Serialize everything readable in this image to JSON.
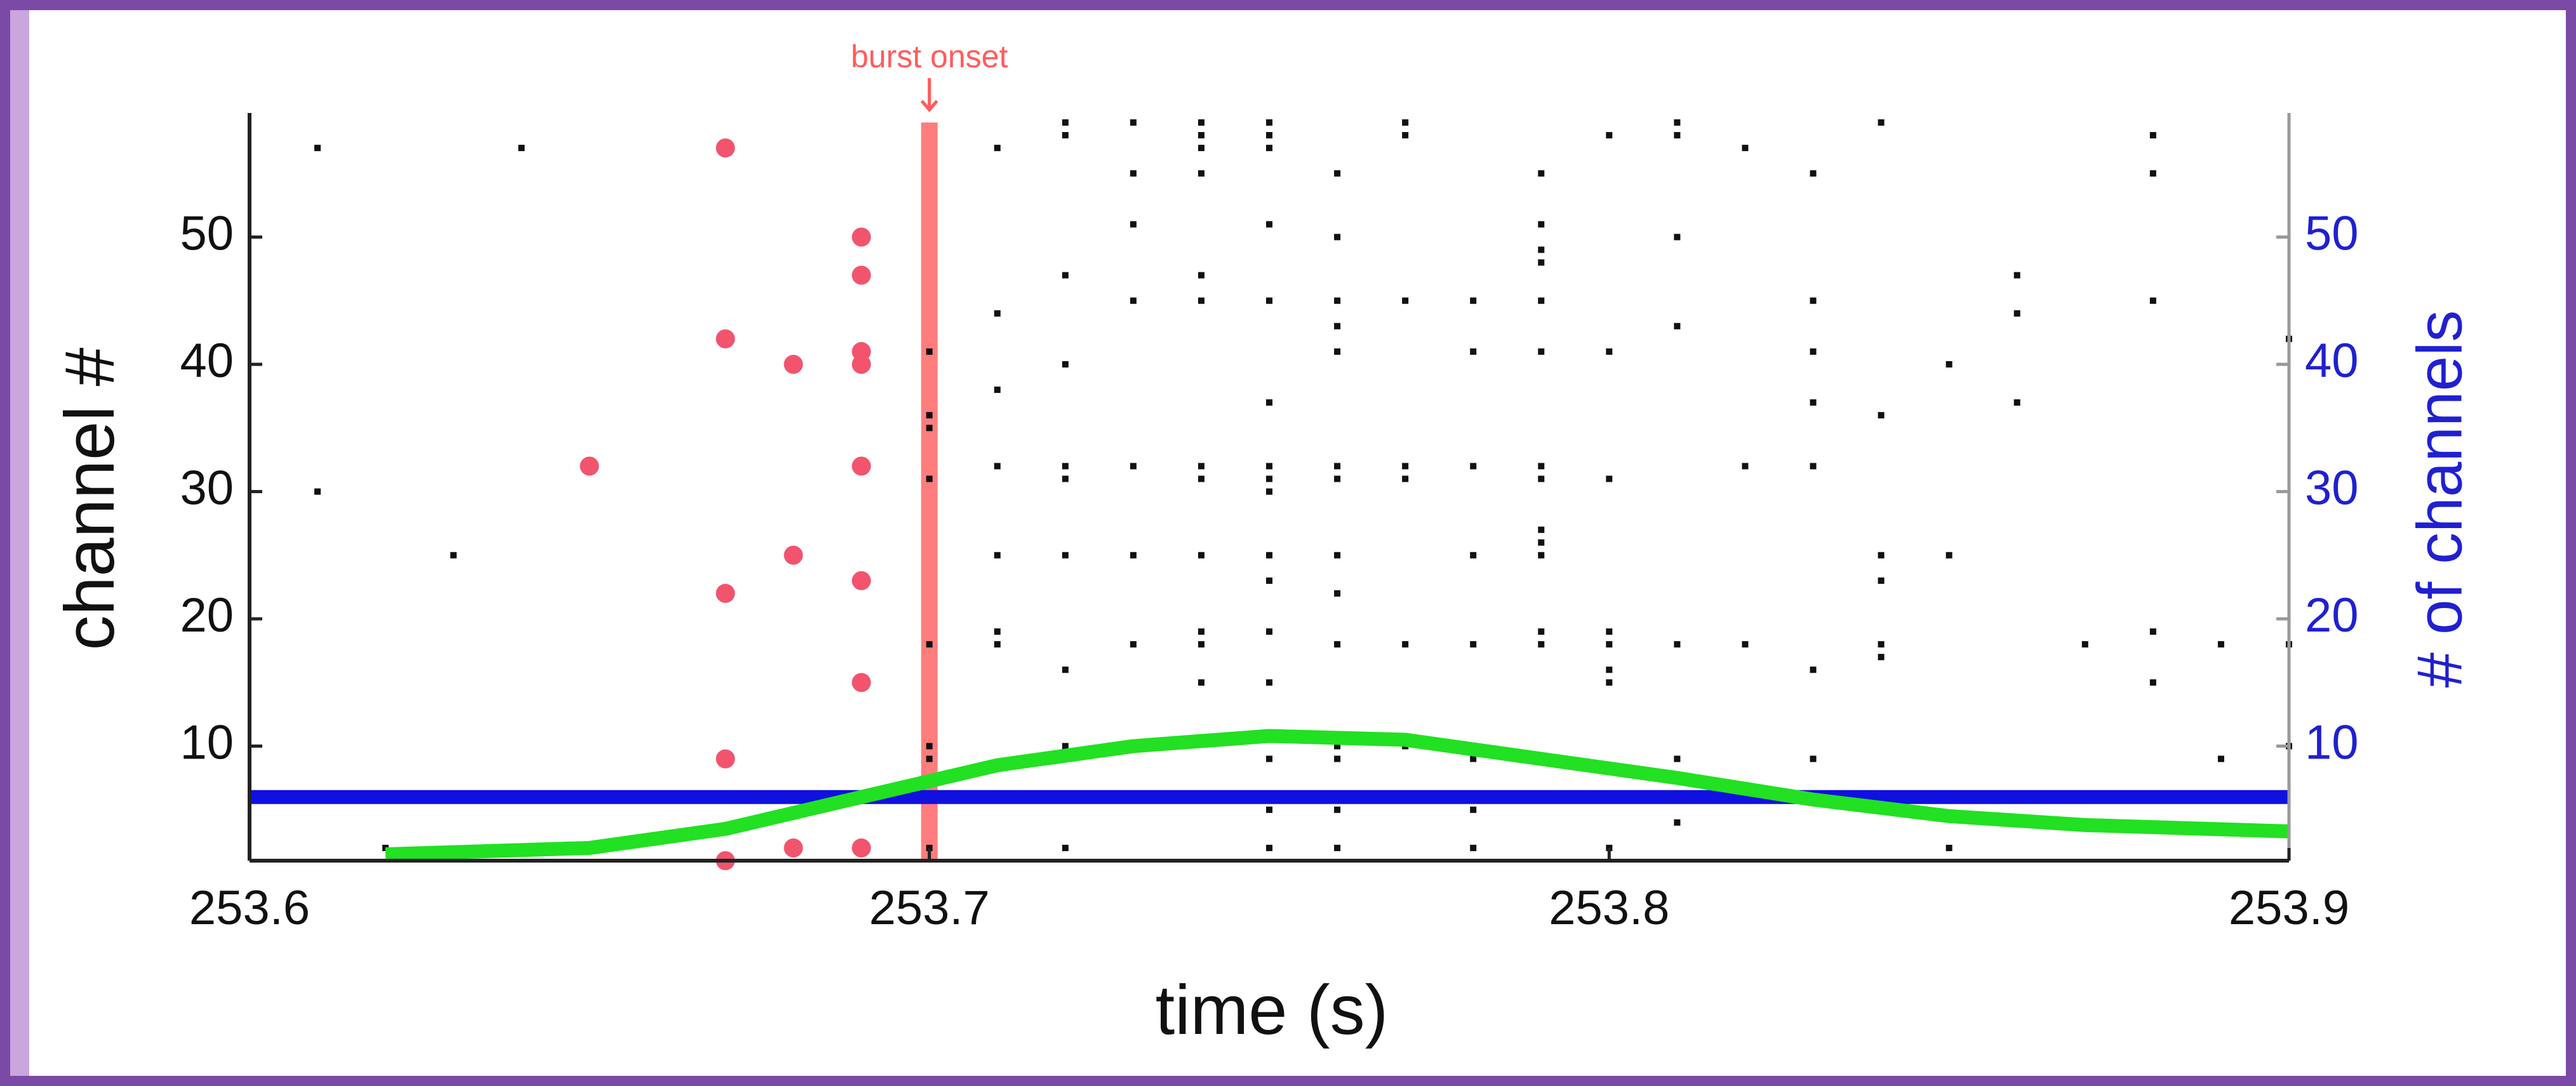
{
  "chart_data": {
    "type": "scatter",
    "xlabel": "time (s)",
    "ylabel": "channel #",
    "y2label": "# of channels",
    "xlim": [
      253.6,
      253.9
    ],
    "xticks": [
      253.6,
      253.7,
      253.8,
      253.9
    ],
    "ylim": [
      1,
      59
    ],
    "yticks": [
      10,
      20,
      30,
      40,
      50
    ],
    "y2lim": [
      1,
      59
    ],
    "y2ticks": [
      10,
      20,
      30,
      40,
      50
    ],
    "annotations": [
      {
        "text": "burst onset",
        "x": 253.7,
        "color": "#ff5c5c"
      }
    ],
    "series": [
      {
        "type": "scatter",
        "marker": "square",
        "color": "#111111",
        "x": [
          253.61,
          253.61,
          253.62,
          253.63,
          253.64,
          253.65,
          253.7,
          253.7,
          253.7,
          253.7,
          253.7,
          253.7,
          253.7,
          253.7,
          253.71,
          253.71,
          253.71,
          253.71,
          253.71,
          253.71,
          253.71,
          253.72,
          253.72,
          253.72,
          253.72,
          253.72,
          253.72,
          253.72,
          253.72,
          253.72,
          253.72,
          253.72,
          253.73,
          253.73,
          253.73,
          253.73,
          253.73,
          253.73,
          253.73,
          253.73,
          253.74,
          253.74,
          253.74,
          253.74,
          253.74,
          253.74,
          253.74,
          253.74,
          253.74,
          253.74,
          253.74,
          253.74,
          253.75,
          253.75,
          253.75,
          253.75,
          253.75,
          253.75,
          253.75,
          253.75,
          253.75,
          253.75,
          253.75,
          253.75,
          253.75,
          253.75,
          253.75,
          253.75,
          253.76,
          253.76,
          253.76,
          253.76,
          253.76,
          253.76,
          253.76,
          253.76,
          253.76,
          253.76,
          253.76,
          253.76,
          253.76,
          253.76,
          253.77,
          253.77,
          253.77,
          253.77,
          253.77,
          253.77,
          253.77,
          253.78,
          253.78,
          253.78,
          253.78,
          253.78,
          253.78,
          253.78,
          253.78,
          253.79,
          253.79,
          253.79,
          253.79,
          253.79,
          253.79,
          253.79,
          253.79,
          253.79,
          253.79,
          253.79,
          253.79,
          253.79,
          253.8,
          253.8,
          253.8,
          253.8,
          253.8,
          253.8,
          253.8,
          253.8,
          253.81,
          253.81,
          253.81,
          253.81,
          253.81,
          253.81,
          253.81,
          253.82,
          253.82,
          253.82,
          253.83,
          253.83,
          253.83,
          253.83,
          253.83,
          253.83,
          253.83,
          253.84,
          253.84,
          253.84,
          253.84,
          253.84,
          253.84,
          253.85,
          253.85,
          253.85,
          253.86,
          253.86,
          253.86,
          253.86,
          253.87,
          253.87,
          253.88,
          253.88,
          253.88,
          253.88,
          253.88,
          253.89,
          253.89,
          253.9,
          253.9,
          253.9
        ],
        "values": [
          57,
          30,
          2,
          25,
          57,
          2,
          41,
          36,
          35,
          31,
          18,
          10,
          9,
          2,
          57,
          44,
          38,
          32,
          25,
          19,
          18,
          59,
          58,
          47,
          40,
          32,
          31,
          25,
          16,
          10,
          6,
          2,
          59,
          55,
          51,
          45,
          32,
          25,
          18,
          10,
          59,
          58,
          57,
          55,
          47,
          45,
          32,
          31,
          25,
          19,
          18,
          15,
          59,
          58,
          57,
          51,
          45,
          37,
          32,
          31,
          30,
          25,
          23,
          19,
          15,
          9,
          5,
          2,
          55,
          50,
          45,
          43,
          41,
          32,
          31,
          25,
          22,
          18,
          10,
          9,
          5,
          2,
          59,
          58,
          45,
          32,
          31,
          18,
          10,
          45,
          41,
          32,
          25,
          18,
          9,
          5,
          2,
          55,
          51,
          49,
          48,
          45,
          41,
          32,
          31,
          27,
          26,
          25,
          19,
          18,
          58,
          41,
          31,
          19,
          18,
          16,
          15,
          2,
          59,
          58,
          50,
          43,
          18,
          9,
          4,
          57,
          32,
          18,
          55,
          45,
          41,
          37,
          32,
          16,
          9,
          59,
          36,
          25,
          23,
          18,
          17,
          40,
          25,
          2,
          47,
          44,
          37,
          4,
          18,
          6,
          58,
          55,
          45,
          19,
          15,
          18,
          9,
          42,
          18,
          10
        ]
      },
      {
        "type": "scatter",
        "marker": "circle",
        "color": "#f2546e",
        "x": [
          253.65,
          253.67,
          253.67,
          253.67,
          253.67,
          253.67,
          253.68,
          253.68,
          253.68,
          253.69,
          253.69,
          253.69,
          253.69,
          253.69,
          253.69,
          253.69,
          253.69
        ],
        "values": [
          32,
          57,
          42,
          22,
          9,
          1,
          40,
          25,
          2,
          50,
          47,
          41,
          40,
          32,
          23,
          15,
          2
        ]
      },
      {
        "type": "line",
        "axis": "y2",
        "color": "#1010e0",
        "x": [
          253.6,
          253.9
        ],
        "values": [
          6,
          6
        ]
      },
      {
        "type": "line",
        "axis": "y2",
        "color": "#22e022",
        "x": [
          253.62,
          253.65,
          253.67,
          253.69,
          253.71,
          253.73,
          253.75,
          253.77,
          253.79,
          253.81,
          253.83,
          253.85,
          253.87,
          253.9
        ],
        "values": [
          1.5,
          2,
          3.5,
          6,
          8.5,
          10,
          10.8,
          10.5,
          9,
          7.5,
          5.8,
          4.5,
          3.8,
          3.3
        ]
      }
    ]
  }
}
